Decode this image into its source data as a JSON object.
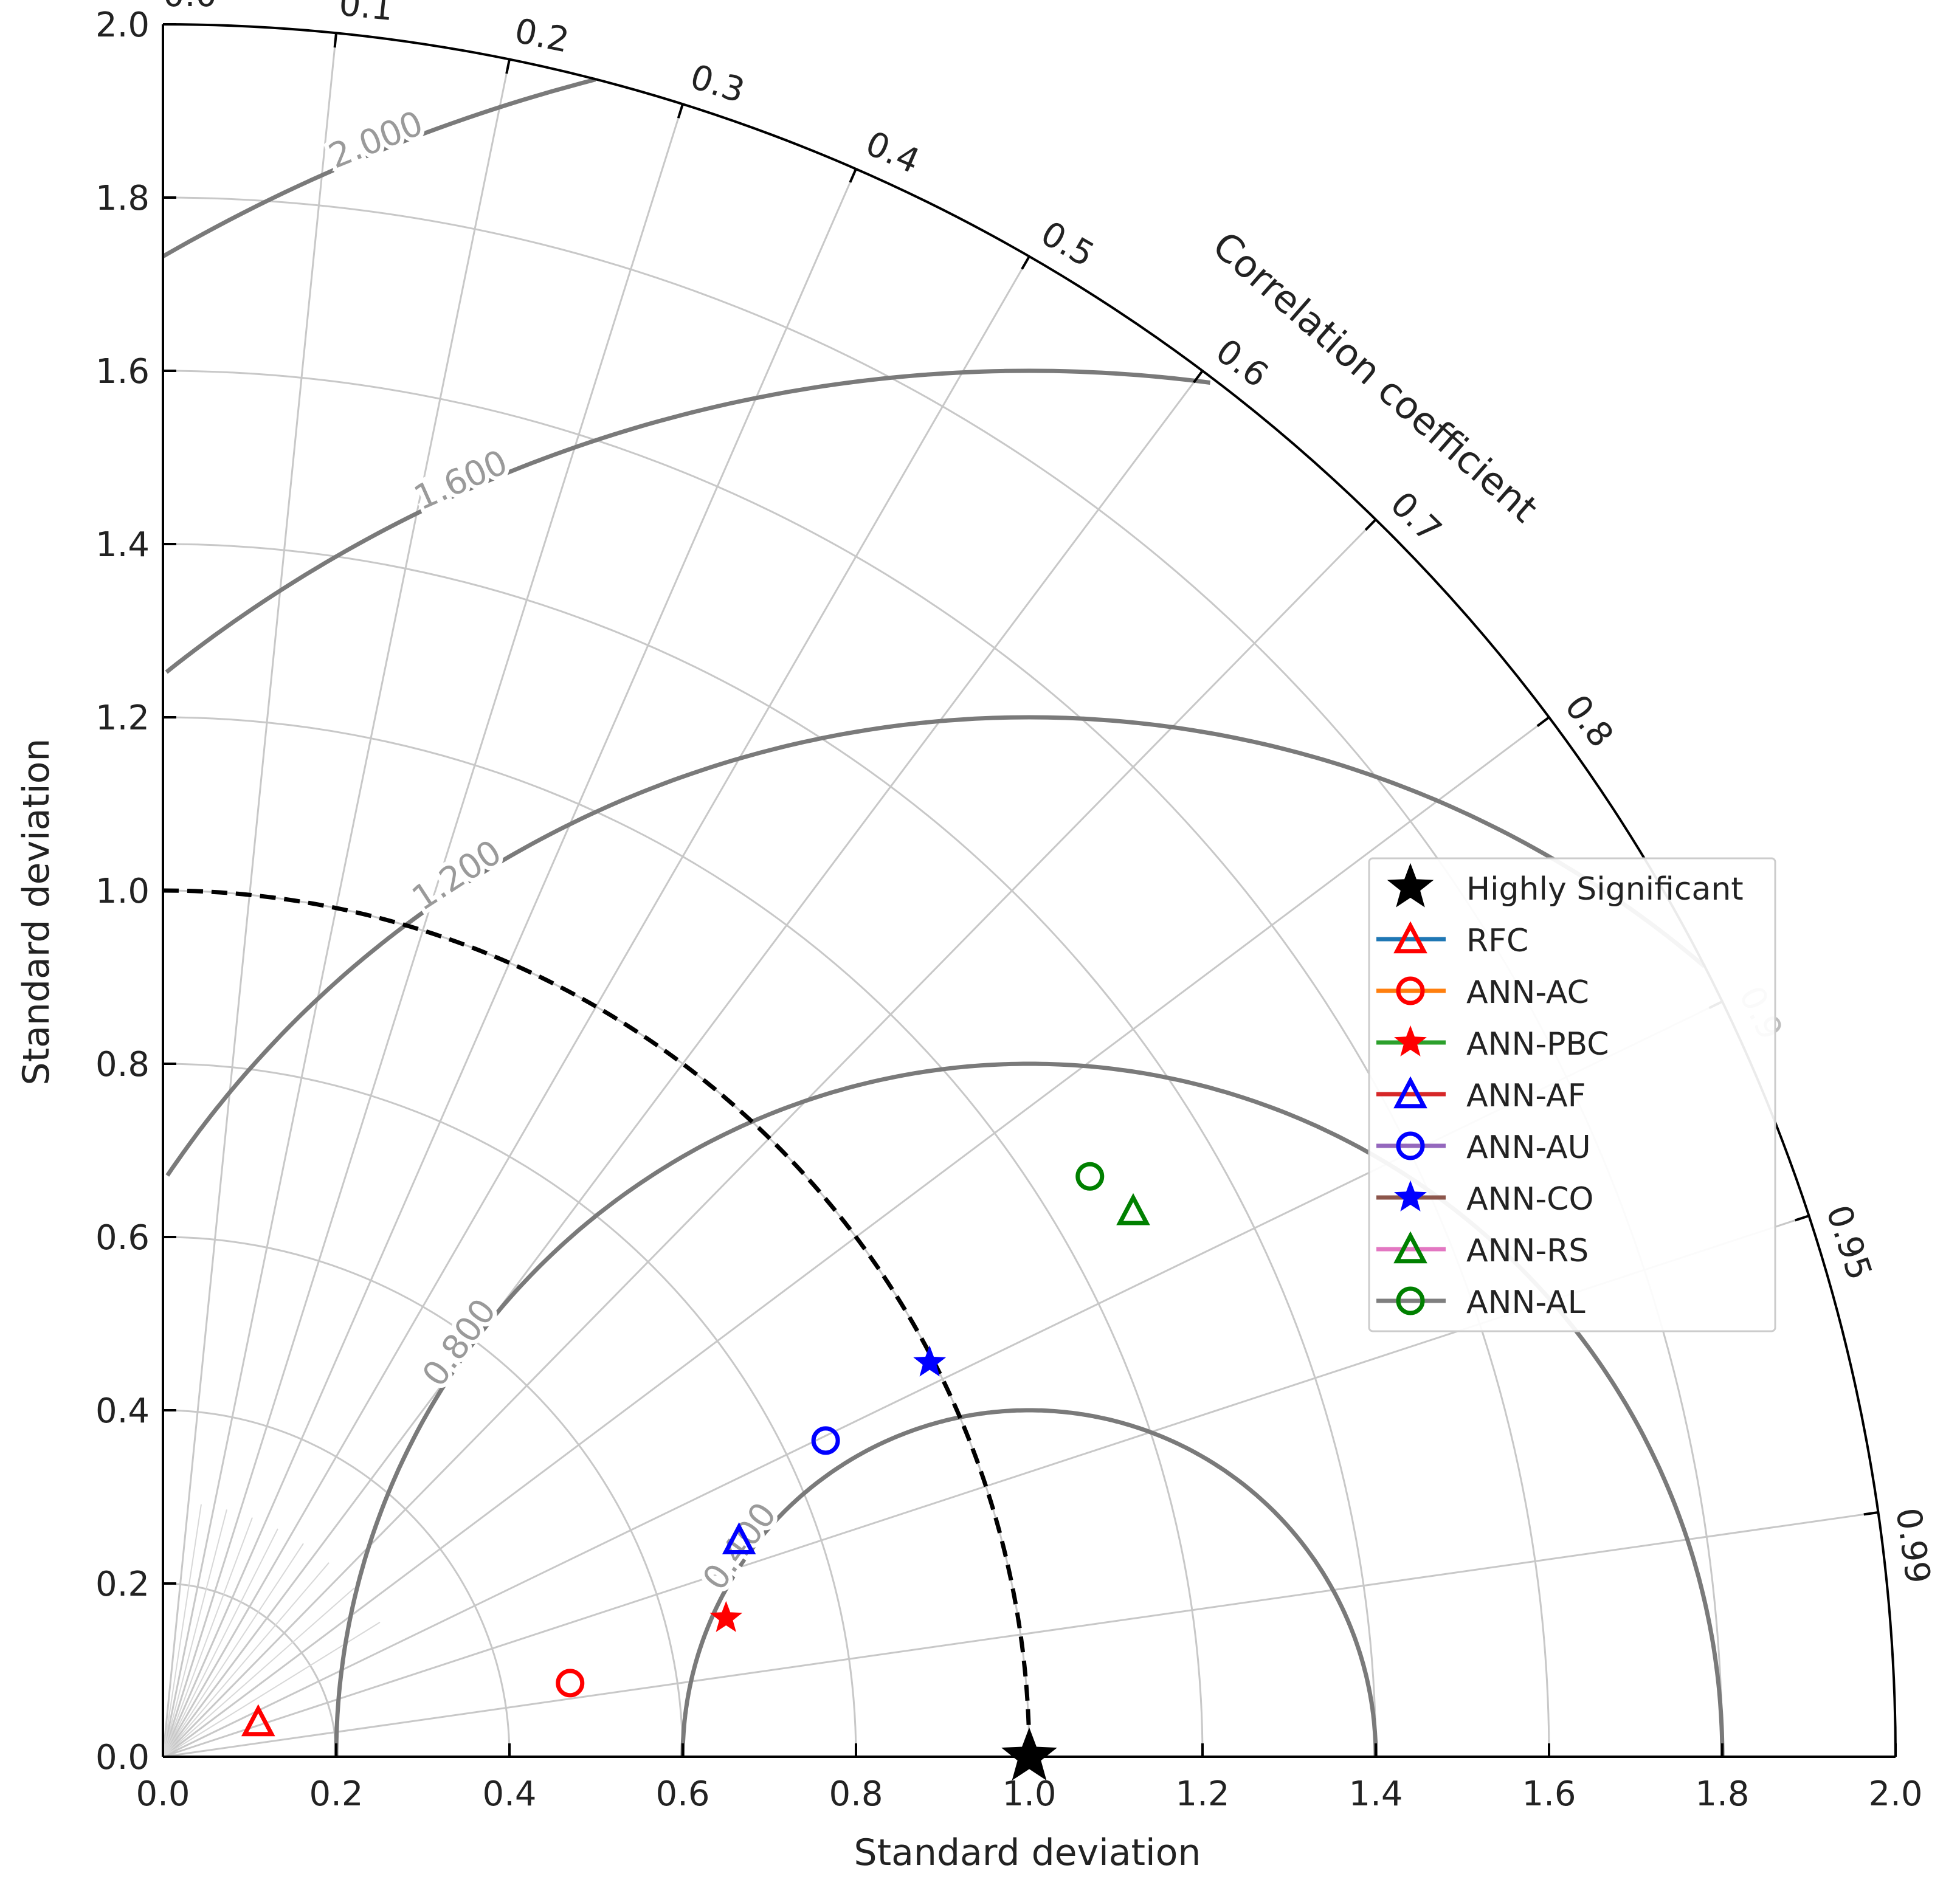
{
  "chart_data": {
    "type": "scatter",
    "subtype": "taylor-diagram",
    "x_label": "Standard deviation",
    "y_label": "Standard deviation",
    "angle_label": "Correlation coefficient",
    "std_range": [
      0.0,
      2.0
    ],
    "std_ticks": [
      "0.0",
      "0.2",
      "0.4",
      "0.6",
      "0.8",
      "1.0",
      "1.2",
      "1.4",
      "1.6",
      "1.8",
      "2.0"
    ],
    "correlation_ticks": [
      "0.0",
      "0.1",
      "0.2",
      "0.3",
      "0.4",
      "0.5",
      "0.6",
      "0.7",
      "0.8",
      "0.9",
      "0.95",
      "0.99"
    ],
    "rms_contours": [
      0.4,
      0.8,
      1.2,
      1.6,
      2.0
    ],
    "rms_contour_labels": [
      "0.400",
      "0.800",
      "1.200",
      "1.600",
      "2.000"
    ],
    "reference_std": 1.0,
    "grid": true,
    "legend_position": "right",
    "reference": {
      "name": "Highly Significant",
      "x": 1.0,
      "y": 0.0,
      "color": "#000000"
    },
    "series": [
      {
        "name": "RFC",
        "marker": "triangle",
        "color": "#ff0000",
        "line_color": "#1f77b4",
        "x": 0.11,
        "y": 0.04
      },
      {
        "name": "ANN-AC",
        "marker": "circle",
        "color": "#ff0000",
        "line_color": "#ff7f0e",
        "x": 0.47,
        "y": 0.085
      },
      {
        "name": "ANN-PBC",
        "marker": "star",
        "color": "#ff0000",
        "line_color": "#2ca02c",
        "x": 0.65,
        "y": 0.16
      },
      {
        "name": "ANN-AF",
        "marker": "triangle",
        "color": "#0000ff",
        "line_color": "#d62728",
        "x": 0.665,
        "y": 0.25
      },
      {
        "name": "ANN-AU",
        "marker": "circle",
        "color": "#0000ff",
        "line_color": "#9467bd",
        "x": 0.765,
        "y": 0.365
      },
      {
        "name": "ANN-CO",
        "marker": "star",
        "color": "#0000ff",
        "line_color": "#8c564b",
        "x": 0.885,
        "y": 0.455
      },
      {
        "name": "ANN-RS",
        "marker": "triangle",
        "color": "#008000",
        "line_color": "#e377c2",
        "x": 1.12,
        "y": 0.63
      },
      {
        "name": "ANN-AL",
        "marker": "circle",
        "color": "#008000",
        "line_color": "#7f7f7f",
        "x": 1.07,
        "y": 0.67
      }
    ]
  }
}
